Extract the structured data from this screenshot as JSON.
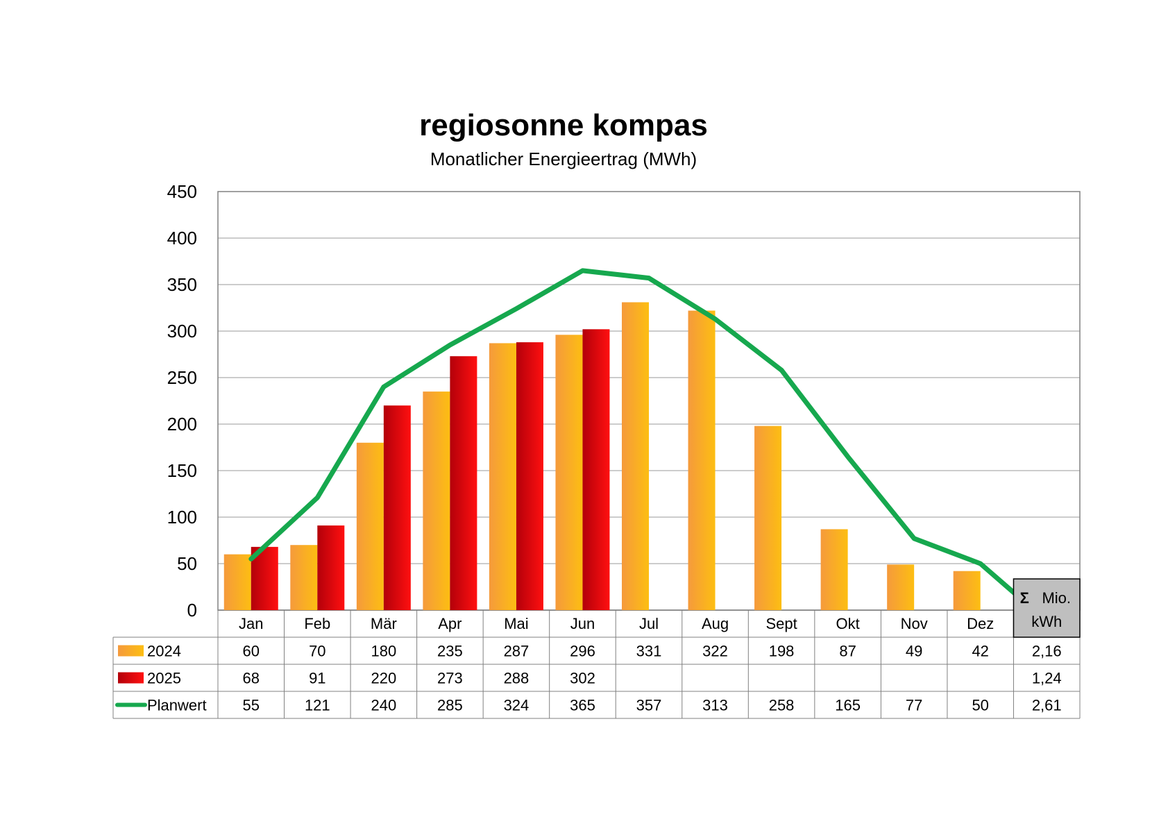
{
  "chart_data": {
    "type": "bar",
    "title": "regiosonne kompas",
    "subtitle": "Monatlicher Energieertrag (MWh)",
    "categories": [
      "Jan",
      "Feb",
      "Mär",
      "Apr",
      "Mai",
      "Jun",
      "Jul",
      "Aug",
      "Sept",
      "Okt",
      "Nov",
      "Dez"
    ],
    "ylim": [
      0,
      450
    ],
    "yticks": [
      0,
      50,
      100,
      150,
      200,
      250,
      300,
      350,
      400,
      450
    ],
    "grid": true,
    "series": [
      {
        "name": "2024",
        "type": "bar",
        "color": "#F7A234",
        "values": [
          60,
          70,
          180,
          235,
          287,
          296,
          331,
          322,
          198,
          87,
          49,
          42
        ],
        "total": "2,16"
      },
      {
        "name": "2025",
        "type": "bar",
        "color": "#D8000C",
        "values": [
          68,
          91,
          220,
          273,
          288,
          302,
          null,
          null,
          null,
          null,
          null,
          null
        ],
        "total": "1,24"
      },
      {
        "name": "Planwert",
        "type": "line",
        "color": "#16A84E",
        "values": [
          55,
          121,
          240,
          285,
          324,
          365,
          357,
          313,
          258,
          165,
          77,
          50
        ],
        "total": "2,61"
      }
    ],
    "total_header": {
      "symbol": "Σ",
      "unit_line1": "Mio.",
      "unit_line2": "kWh"
    },
    "data_table": true
  }
}
